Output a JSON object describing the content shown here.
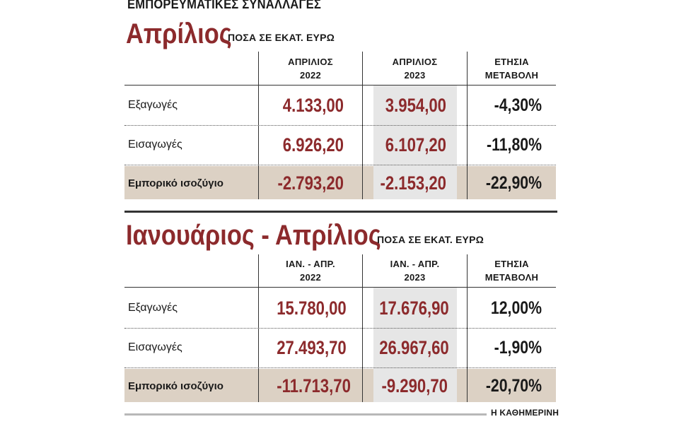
{
  "header": {
    "title": "ΕΜΠΟΡΕΥΜΑΤΙΚΕΣ ΣΥΝΑΛΛΑΓΕΣ"
  },
  "chart_data": [
    {
      "type": "table",
      "title": "Απρίλιος",
      "subtitle": "ΠΟΣΑ ΣΕ ΕΚΑΤ. ΕΥΡΩ",
      "columns": [
        {
          "line1": "ΑΠΡΙΛΙΟΣ",
          "line2": "2022"
        },
        {
          "line1": "ΑΠΡΙΛΙΟΣ",
          "line2": "2023"
        },
        {
          "line1": "ΕΤΗΣΙΑ",
          "line2": "ΜΕΤΑΒΟΛΗ"
        }
      ],
      "rows": [
        {
          "label": "Εξαγωγές",
          "v2022": "4.133,00",
          "v2023": "3.954,00",
          "change": "-4,30%"
        },
        {
          "label": "Εισαγωγές",
          "v2022": "6.926,20",
          "v2023": "6.107,20",
          "change": "-11,80%"
        },
        {
          "label": "Εμπορικό ισοζύγιο",
          "v2022": "-2.793,20",
          "v2023": "-2.153,20",
          "change": "-22,90%"
        }
      ]
    },
    {
      "type": "table",
      "title": "Ιανουάριος - Απρίλιος",
      "subtitle": "ΠΟΣΑ ΣΕ ΕΚΑΤ. ΕΥΡΩ",
      "columns": [
        {
          "line1": "ΙΑΝ. - ΑΠΡ.",
          "line2": "2022"
        },
        {
          "line1": "ΙΑΝ. - ΑΠΡ.",
          "line2": "2023"
        },
        {
          "line1": "ΕΤΗΣΙΑ",
          "line2": "ΜΕΤΑΒΟΛΗ"
        }
      ],
      "rows": [
        {
          "label": "Εξαγωγές",
          "v2022": "15.780,00",
          "v2023": "17.676,90",
          "change": "12,00%"
        },
        {
          "label": "Εισαγωγές",
          "v2022": "27.493,70",
          "v2023": "26.967,60",
          "change": "-1,90%"
        },
        {
          "label": "Εμπορικό ισοζύγιο",
          "v2022": "-11.713,70",
          "v2023": "-9.290,70",
          "change": "-20,70%"
        }
      ]
    }
  ],
  "footer": {
    "source": "Η ΚΑΘΗΜΕΡΙΝΗ"
  },
  "colors": {
    "accent": "#8c2a2c",
    "balance_row": "#dcd1c4",
    "highlight_col": "#e6e6e6"
  }
}
